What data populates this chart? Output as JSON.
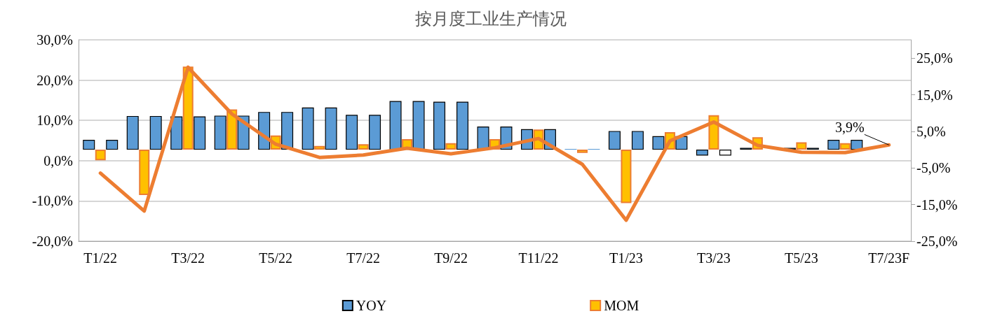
{
  "chart_data": {
    "type": "bar",
    "title": "按月度工业生产情况",
    "categories": [
      "T1/22",
      null,
      "T3/22",
      null,
      "T5/22",
      null,
      "T7/22",
      null,
      "T9/22",
      null,
      "T11/22",
      null,
      "T1/23",
      null,
      "T3/23",
      null,
      "T5/23",
      null,
      "T7/23F"
    ],
    "series": [
      {
        "name": "YOY",
        "axis": "y2",
        "color": "#5b9bd5",
        "values": [
          2.7,
          9.2,
          9.1,
          9.3,
          10.3,
          11.5,
          9.5,
          13.3,
          13.1,
          6.3,
          5.6,
          0.2,
          5.1,
          3.7,
          -1.6,
          0.5,
          0.5,
          2.7,
          null
        ]
      },
      {
        "name": "MOM",
        "axis": "y2",
        "color": "#ffc000",
        "values": [
          -2.9,
          -12.4,
          22.7,
          11.0,
          3.9,
          1.0,
          1.5,
          2.9,
          1.8,
          2.9,
          5.5,
          -0.9,
          -14.6,
          4.8,
          9.4,
          3.4,
          2.0,
          1.8,
          null
        ]
      },
      {
        "axis": "y2",
        "color": "#5b9bd5",
        "colors": [
          "#5b9bd5",
          "#5b9bd5",
          "#5b9bd5",
          "#5b9bd5",
          "#5b9bd5",
          "#5b9bd5",
          "#5b9bd5",
          "#5b9bd5",
          "#5b9bd5",
          "#5b9bd5",
          "#5b9bd5",
          "#5b9bd5",
          "#5b9bd5",
          "#5b9bd5",
          "#ffffff",
          "#5b9bd5",
          "#5b9bd5",
          "#5b9bd5",
          "#5b9bd5"
        ],
        "values": [
          2.7,
          9.2,
          9.1,
          9.3,
          10.3,
          11.5,
          9.5,
          13.3,
          13.1,
          6.3,
          5.6,
          0.2,
          5.1,
          3.7,
          -1.6,
          null,
          0.5,
          2.7,
          null
        ]
      },
      {
        "type": "line",
        "color": "#ed7d31",
        "values": [
          -3.1,
          -12.5,
          23.2,
          11.6,
          4.1,
          0.8,
          1.4,
          3.1,
          1.7,
          3.2,
          5.5,
          -0.9,
          -14.8,
          4.9,
          9.6,
          3.8,
          2.1,
          2.0,
          3.9
        ],
        "value_labels": [
          null,
          null,
          null,
          null,
          null,
          null,
          null,
          null,
          null,
          null,
          null,
          null,
          null,
          null,
          null,
          null,
          null,
          null,
          "3,9%"
        ]
      }
    ],
    "ylim": [
      -20,
      30
    ],
    "yticks": [
      {
        "value": -20,
        "label": "-20,0%"
      },
      {
        "value": -10,
        "label": "-10,0%"
      },
      {
        "value": 0,
        "label": "0,0%"
      },
      {
        "value": 10,
        "label": "10,0%"
      },
      {
        "value": 20,
        "label": "20,0%"
      },
      {
        "value": 30,
        "label": "30,0%"
      }
    ],
    "y2lim": [
      -25,
      30
    ],
    "y2ticks": [
      {
        "value": -25,
        "label": "-25,0%"
      },
      {
        "value": -15,
        "label": "-15,0%"
      },
      {
        "value": -5,
        "label": "-5,0%"
      },
      {
        "value": 5,
        "label": "5,0%"
      },
      {
        "value": 15,
        "label": "15,0%"
      },
      {
        "value": 25,
        "label": "25,0%"
      }
    ],
    "grid": "y",
    "legend": "bottom",
    "marker": "none",
    "line_style": "solid"
  }
}
